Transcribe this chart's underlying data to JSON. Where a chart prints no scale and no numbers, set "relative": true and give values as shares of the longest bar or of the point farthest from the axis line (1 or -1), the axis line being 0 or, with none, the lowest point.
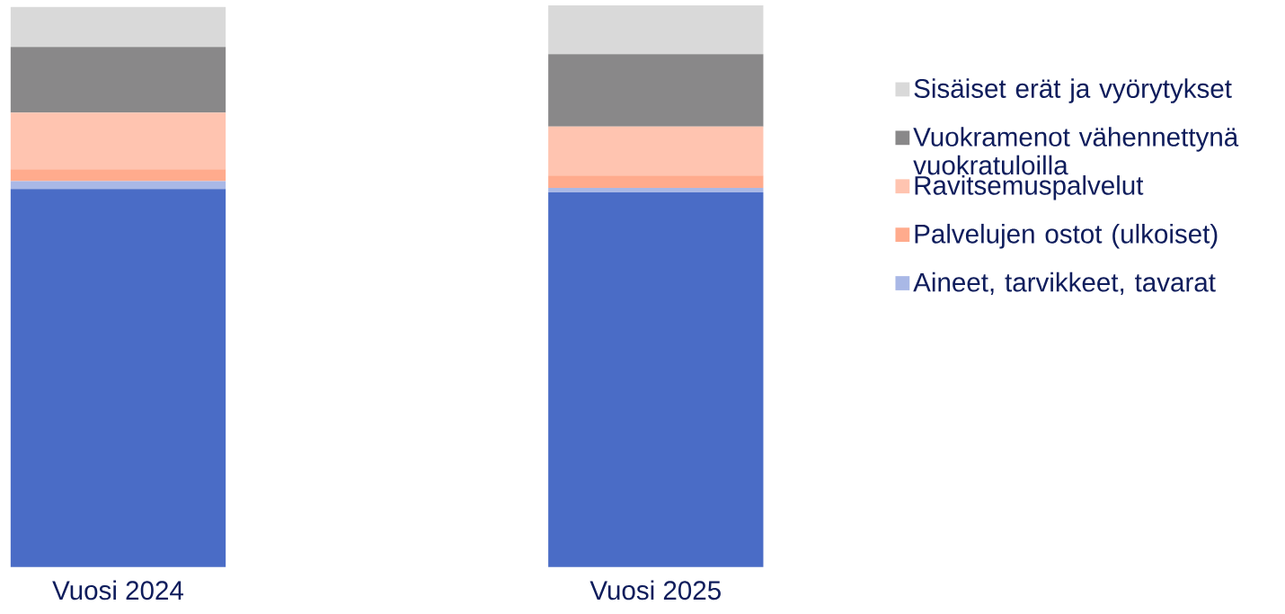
{
  "chart_data": {
    "type": "bar",
    "stacked": true,
    "relative": true,
    "legend": "right",
    "tick_labels": "x",
    "categories": [
      "Vuosi 2024",
      "Vuosi 2025"
    ],
    "series": [
      {
        "color": "#4a6cc6",
        "values": [
          0.673,
          0.667
        ]
      },
      {
        "name": "Aineet, tarvikkeet, tavarat",
        "color": "#a9b8e6",
        "values": [
          0.014,
          0.008
        ]
      },
      {
        "name": "Palvelujen ostot (ulkoiset)",
        "color": "#ffab8d",
        "values": [
          0.021,
          0.022
        ]
      },
      {
        "name": "Ravitsemuspalvelut",
        "color": "#ffc4b0",
        "values": [
          0.101,
          0.087
        ]
      },
      {
        "name": "Vuokramenot vähennettynä vuokratuloilla",
        "color": "#898889",
        "values": [
          0.117,
          0.129
        ]
      },
      {
        "name": "Sisäiset erät ja vyörytykset",
        "color": "#d9d9d9",
        "values": [
          0.071,
          0.087
        ]
      }
    ]
  }
}
